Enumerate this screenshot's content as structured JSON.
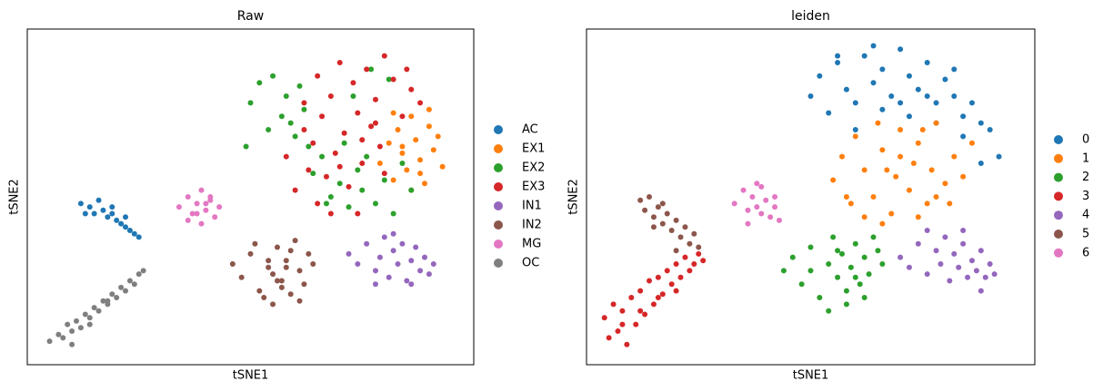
{
  "chart_data": [
    {
      "type": "scatter",
      "title": "Raw",
      "xlabel": "tSNE1",
      "ylabel": "tSNE2",
      "xlim": [
        0,
        100
      ],
      "ylim": [
        0,
        100
      ],
      "series": [
        {
          "name": "AC",
          "color": "#1f77b4",
          "x": [
            12,
            14,
            15,
            17,
            18,
            19,
            20,
            21,
            22,
            23,
            24,
            25,
            16,
            19,
            22,
            13
          ],
          "values": [
            48,
            47,
            45,
            46,
            44,
            45,
            43,
            42,
            41,
            40,
            39,
            38,
            49,
            47,
            44,
            45
          ]
        },
        {
          "name": "EX1",
          "color": "#ff7f0e",
          "x": [
            79,
            81,
            82,
            83,
            84,
            85,
            86,
            87,
            88,
            89,
            90,
            91,
            92,
            93,
            82,
            86,
            90,
            84,
            88
          ],
          "values": [
            60,
            66,
            55,
            70,
            63,
            58,
            74,
            67,
            61,
            54,
            71,
            64,
            68,
            59,
            75,
            52,
            76,
            65,
            57
          ]
        },
        {
          "name": "EX2",
          "color": "#2ca02c",
          "x": [
            50,
            52,
            54,
            55,
            57,
            58,
            60,
            61,
            62,
            64,
            66,
            68,
            70,
            72,
            74,
            75,
            76,
            78,
            80,
            82,
            84,
            86,
            63,
            67,
            71,
            59,
            73,
            77,
            81,
            49
          ],
          "values": [
            78,
            84,
            70,
            86,
            74,
            80,
            68,
            83,
            76,
            57,
            62,
            50,
            54,
            47,
            58,
            52,
            62,
            48,
            55,
            45,
            60,
            52,
            65,
            48,
            66,
            72,
            80,
            88,
            85,
            65
          ]
        },
        {
          "name": "EX3",
          "color": "#d62728",
          "x": [
            58,
            60,
            62,
            63,
            64,
            65,
            66,
            67,
            68,
            69,
            70,
            71,
            72,
            73,
            74,
            75,
            76,
            77,
            78,
            79,
            80,
            82,
            84,
            86,
            88,
            65,
            70,
            75,
            80,
            85,
            62,
            68,
            74,
            78
          ],
          "values": [
            62,
            52,
            70,
            58,
            66,
            48,
            74,
            56,
            80,
            63,
            90,
            69,
            53,
            84,
            75,
            60,
            88,
            71,
            79,
            65,
            92,
            85,
            74,
            82,
            78,
            86,
            59,
            67,
            57,
            88,
            78,
            45,
            45,
            72
          ]
        },
        {
          "name": "IN1",
          "color": "#9467bd",
          "x": [
            72,
            74,
            76,
            78,
            79,
            80,
            81,
            82,
            83,
            84,
            85,
            86,
            87,
            88,
            89,
            90,
            91,
            78,
            82,
            86
          ],
          "values": [
            33,
            30,
            36,
            28,
            32,
            38,
            26,
            34,
            30,
            36,
            25,
            31,
            35,
            28,
            32,
            27,
            30,
            24,
            39,
            24
          ]
        },
        {
          "name": "IN2",
          "color": "#8c564b",
          "x": [
            46,
            48,
            50,
            52,
            54,
            55,
            56,
            57,
            58,
            59,
            60,
            61,
            62,
            63,
            64,
            51,
            53,
            55,
            57,
            59,
            61,
            54,
            58,
            56
          ],
          "values": [
            30,
            26,
            33,
            22,
            29,
            18,
            35,
            25,
            31,
            21,
            37,
            28,
            24,
            33,
            30,
            36,
            20,
            27,
            23,
            34,
            19,
            31,
            29,
            25
          ]
        },
        {
          "name": "MG",
          "color": "#e377c2",
          "x": [
            34,
            36,
            37,
            38,
            39,
            40,
            41,
            42,
            43,
            36,
            39,
            41,
            38,
            40
          ],
          "values": [
            47,
            50,
            45,
            48,
            52,
            46,
            49,
            44,
            47,
            43,
            42,
            50,
            45,
            48
          ]
        },
        {
          "name": "OC",
          "color": "#7f7f7f",
          "x": [
            5,
            7,
            8,
            9,
            10,
            11,
            12,
            13,
            14,
            15,
            16,
            17,
            18,
            19,
            20,
            21,
            22,
            23,
            24,
            25,
            26,
            10,
            14,
            18
          ],
          "values": [
            7,
            9,
            8,
            12,
            10,
            13,
            11,
            15,
            14,
            17,
            16,
            19,
            18,
            21,
            20,
            23,
            22,
            25,
            24,
            27,
            28,
            6,
            12,
            19
          ]
        }
      ]
    },
    {
      "type": "scatter",
      "title": "leiden",
      "xlabel": "tSNE1",
      "ylabel": "tSNE2",
      "xlim": [
        0,
        100
      ],
      "ylim": [
        0,
        100
      ],
      "series": [
        {
          "name": "0",
          "color": "#1f77b4",
          "x": [
            50,
            52,
            54,
            56,
            58,
            60,
            62,
            64,
            66,
            68,
            70,
            72,
            74,
            76,
            78,
            80,
            82,
            84,
            86,
            88,
            90,
            92,
            60,
            66,
            72,
            78,
            84,
            88,
            56,
            64,
            70,
            76,
            82
          ],
          "values": [
            80,
            86,
            75,
            90,
            82,
            78,
            92,
            84,
            88,
            80,
            94,
            86,
            82,
            90,
            78,
            85,
            80,
            74,
            78,
            72,
            70,
            62,
            70,
            76,
            74,
            72,
            68,
            60,
            92,
            95,
            78,
            80,
            88
          ]
        },
        {
          "name": "1",
          "color": "#ff7f0e",
          "x": [
            55,
            57,
            59,
            60,
            62,
            64,
            65,
            66,
            68,
            69,
            70,
            72,
            73,
            74,
            76,
            77,
            78,
            80,
            82,
            84,
            86,
            62,
            66,
            70,
            74,
            78,
            58,
            67,
            75,
            81
          ],
          "values": [
            55,
            62,
            48,
            68,
            58,
            50,
            72,
            64,
            45,
            56,
            70,
            52,
            60,
            66,
            48,
            58,
            72,
            54,
            62,
            56,
            66,
            44,
            42,
            62,
            44,
            50,
            50,
            58,
            70,
            48
          ]
        },
        {
          "name": "2",
          "color": "#2ca02c",
          "x": [
            44,
            46,
            48,
            50,
            52,
            54,
            55,
            56,
            57,
            58,
            59,
            60,
            61,
            62,
            63,
            64,
            65,
            66,
            50,
            54,
            58,
            62,
            56,
            60
          ],
          "values": [
            28,
            32,
            24,
            35,
            20,
            30,
            38,
            26,
            33,
            18,
            29,
            36,
            24,
            32,
            27,
            38,
            34,
            30,
            28,
            16,
            22,
            20,
            34,
            26
          ]
        },
        {
          "name": "3",
          "color": "#d62728",
          "x": [
            4,
            5,
            6,
            7,
            8,
            9,
            10,
            11,
            12,
            13,
            14,
            15,
            16,
            17,
            18,
            19,
            20,
            21,
            22,
            23,
            24,
            25,
            26,
            8,
            12,
            16,
            20
          ],
          "values": [
            14,
            8,
            18,
            10,
            16,
            6,
            20,
            12,
            22,
            15,
            25,
            18,
            26,
            21,
            28,
            24,
            30,
            26,
            32,
            28,
            30,
            33,
            31,
            12,
            16,
            20,
            22
          ]
        },
        {
          "name": "4",
          "color": "#9467bd",
          "x": [
            70,
            72,
            74,
            76,
            78,
            79,
            80,
            81,
            82,
            83,
            84,
            85,
            86,
            87,
            88,
            89,
            90,
            91,
            76,
            84,
            88
          ],
          "values": [
            32,
            29,
            36,
            27,
            34,
            30,
            38,
            25,
            33,
            29,
            36,
            26,
            31,
            28,
            34,
            26,
            30,
            27,
            40,
            40,
            22
          ]
        },
        {
          "name": "5",
          "color": "#8c564b",
          "x": [
            12,
            13,
            14,
            15,
            16,
            17,
            18,
            19,
            20,
            21,
            22,
            23,
            24,
            25,
            17,
            20,
            15
          ],
          "values": [
            49,
            46,
            50,
            44,
            47,
            42,
            45,
            40,
            43,
            38,
            41,
            36,
            39,
            35,
            48,
            34,
            41
          ]
        },
        {
          "name": "6",
          "color": "#e377c2",
          "x": [
            33,
            35,
            36,
            37,
            38,
            39,
            40,
            41,
            42,
            43,
            36,
            39,
            42,
            38
          ],
          "values": [
            48,
            52,
            46,
            50,
            54,
            45,
            49,
            44,
            47,
            43,
            42,
            53,
            50,
            47
          ]
        }
      ]
    }
  ]
}
